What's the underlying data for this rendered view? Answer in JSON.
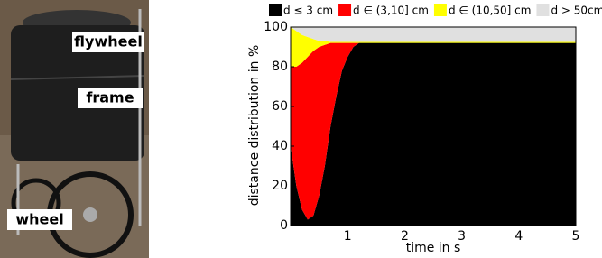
{
  "photo": {
    "labels": [
      "flywheel",
      "frame",
      "wheel"
    ]
  },
  "chart_data": {
    "type": "stacked-area",
    "xlabel": "time in s",
    "ylabel": "distance distribution in %",
    "x": [
      0,
      0.1,
      0.2,
      0.3,
      0.4,
      0.5,
      0.6,
      0.7,
      0.8,
      0.9,
      1.0,
      1.1,
      1.2,
      1.5,
      2,
      3,
      4,
      5
    ],
    "series": [
      {
        "name": "d ≤ 3 cm",
        "color": "#000000",
        "values": [
          40,
          20,
          8,
          3,
          5,
          15,
          30,
          50,
          65,
          78,
          85,
          90,
          92,
          92,
          92,
          92,
          92,
          92
        ]
      },
      {
        "name": "d ∈ (3,10] cm",
        "color": "#ff0000",
        "values": [
          40,
          60,
          74,
          82,
          83,
          75,
          61,
          42,
          27,
          14,
          7,
          2,
          0,
          0,
          0,
          0,
          0,
          0
        ]
      },
      {
        "name": "d ∈ (10,50] cm",
        "color": "#ffff00",
        "values": [
          20,
          18,
          14,
          10,
          6,
          3,
          2,
          0.5,
          0.5,
          0.5,
          0.5,
          0.5,
          0.5,
          0.5,
          0.5,
          0.5,
          0.5,
          0.5
        ]
      },
      {
        "name": "d > 50cm",
        "color": "#e0e0e0",
        "values": [
          0,
          2,
          4,
          5,
          6,
          7,
          7,
          7.5,
          7.5,
          7.5,
          7.5,
          7.5,
          7.5,
          7.5,
          7.5,
          7.5,
          7.5,
          7.5
        ]
      }
    ],
    "xlim": [
      0,
      5
    ],
    "xticks": [
      1,
      2,
      3,
      4,
      5
    ],
    "ylim": [
      0,
      100
    ],
    "yticks": [
      0,
      20,
      40,
      60,
      80,
      100
    ],
    "legend": "top"
  }
}
